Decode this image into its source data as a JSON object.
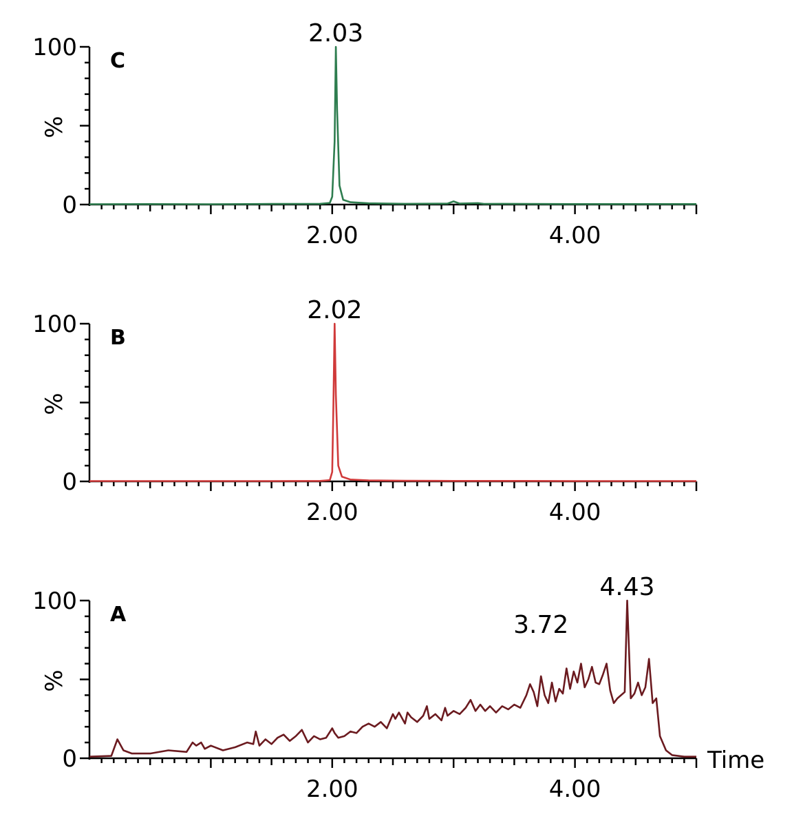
{
  "chart_data": [
    {
      "type": "line",
      "panel_label": "C",
      "ylabel": "%",
      "xlabel": "",
      "ylim": [
        0,
        100
      ],
      "xlim": [
        0,
        5
      ],
      "y_ticks": [
        "0",
        "100"
      ],
      "x_ticks": [
        "2.00",
        "4.00"
      ],
      "color": "#2e7d4f",
      "peak_annotations": [
        {
          "x": 2.03,
          "y": 100,
          "label": "2.03"
        }
      ],
      "series": [
        {
          "x": [
            0,
            0.5,
            1.0,
            1.5,
            1.9,
            1.98,
            2.0,
            2.02,
            2.03,
            2.04,
            2.06,
            2.09,
            2.15,
            2.3,
            2.6,
            2.95,
            3.0,
            3.05,
            3.2,
            3.25,
            3.4,
            4.0,
            4.5,
            5.0
          ],
          "y": [
            0.2,
            0.3,
            0.2,
            0.4,
            0.5,
            1.0,
            5,
            40,
            100,
            60,
            12,
            3,
            1.5,
            0.8,
            0.5,
            0.6,
            2.0,
            0.6,
            0.9,
            0.4,
            0.5,
            0.3,
            0.3,
            0.3
          ]
        }
      ]
    },
    {
      "type": "line",
      "panel_label": "B",
      "ylabel": "%",
      "xlabel": "",
      "ylim": [
        0,
        100
      ],
      "xlim": [
        0,
        5
      ],
      "y_ticks": [
        "0",
        "100"
      ],
      "x_ticks": [
        "2.00",
        "4.00"
      ],
      "color": "#d03a3a",
      "peak_annotations": [
        {
          "x": 2.02,
          "y": 100,
          "label": "2.02"
        }
      ],
      "series": [
        {
          "x": [
            0,
            0.5,
            1.0,
            1.5,
            1.9,
            1.98,
            2.0,
            2.01,
            2.02,
            2.03,
            2.05,
            2.08,
            2.15,
            2.3,
            2.6,
            3.0,
            3.5,
            4.0,
            4.5,
            5.0
          ],
          "y": [
            0.2,
            0.2,
            0.2,
            0.2,
            0.3,
            0.8,
            6,
            50,
            100,
            55,
            10,
            3,
            1.2,
            0.6,
            0.4,
            0.3,
            0.3,
            0.2,
            0.2,
            0.2
          ]
        }
      ]
    },
    {
      "type": "line",
      "panel_label": "A",
      "ylabel": "%",
      "xlabel": "Time",
      "ylim": [
        0,
        100
      ],
      "xlim": [
        0,
        5
      ],
      "y_ticks": [
        "0",
        "100"
      ],
      "x_ticks": [
        "2.00",
        "4.00"
      ],
      "color": "#6b1a1f",
      "peak_annotations": [
        {
          "x": 3.72,
          "y": 76,
          "label": "3.72"
        },
        {
          "x": 4.43,
          "y": 100,
          "label": "4.43"
        }
      ],
      "series": [
        {
          "x": [
            0,
            0.18,
            0.23,
            0.28,
            0.35,
            0.5,
            0.65,
            0.8,
            0.85,
            0.88,
            0.92,
            0.95,
            1.0,
            1.1,
            1.2,
            1.3,
            1.35,
            1.37,
            1.4,
            1.45,
            1.5,
            1.55,
            1.6,
            1.65,
            1.7,
            1.75,
            1.8,
            1.85,
            1.9,
            1.95,
            2.0,
            2.02,
            2.05,
            2.1,
            2.15,
            2.2,
            2.25,
            2.3,
            2.35,
            2.4,
            2.45,
            2.5,
            2.52,
            2.55,
            2.6,
            2.62,
            2.65,
            2.7,
            2.75,
            2.78,
            2.8,
            2.85,
            2.9,
            2.93,
            2.95,
            3.0,
            3.05,
            3.1,
            3.14,
            3.18,
            3.22,
            3.26,
            3.3,
            3.35,
            3.4,
            3.45,
            3.5,
            3.55,
            3.6,
            3.63,
            3.66,
            3.69,
            3.72,
            3.75,
            3.78,
            3.81,
            3.84,
            3.87,
            3.9,
            3.93,
            3.96,
            3.99,
            4.02,
            4.05,
            4.08,
            4.11,
            4.14,
            4.17,
            4.2,
            4.23,
            4.26,
            4.29,
            4.32,
            4.35,
            4.38,
            4.41,
            4.43,
            4.46,
            4.49,
            4.52,
            4.55,
            4.58,
            4.61,
            4.64,
            4.67,
            4.7,
            4.75,
            4.8,
            4.9,
            5.0
          ],
          "y": [
            1,
            1.5,
            12,
            5,
            3,
            3,
            5,
            4,
            10,
            8,
            10,
            6,
            8,
            5,
            7,
            10,
            9,
            17,
            8,
            12,
            9,
            13,
            15,
            11,
            14,
            18,
            10,
            14,
            12,
            13,
            19,
            16,
            13,
            14,
            17,
            16,
            20,
            22,
            20,
            23,
            19,
            28,
            25,
            29,
            22,
            29,
            26,
            23,
            27,
            33,
            25,
            28,
            24,
            32,
            27,
            30,
            28,
            32,
            37,
            30,
            34,
            30,
            33,
            29,
            33,
            31,
            34,
            32,
            40,
            47,
            42,
            33,
            52,
            40,
            35,
            48,
            36,
            44,
            41,
            57,
            44,
            55,
            48,
            60,
            45,
            50,
            58,
            48,
            47,
            53,
            60,
            43,
            35,
            38,
            40,
            42,
            100,
            38,
            41,
            48,
            40,
            45,
            63,
            35,
            38,
            14,
            5,
            2,
            1,
            1
          ]
        }
      ]
    }
  ]
}
